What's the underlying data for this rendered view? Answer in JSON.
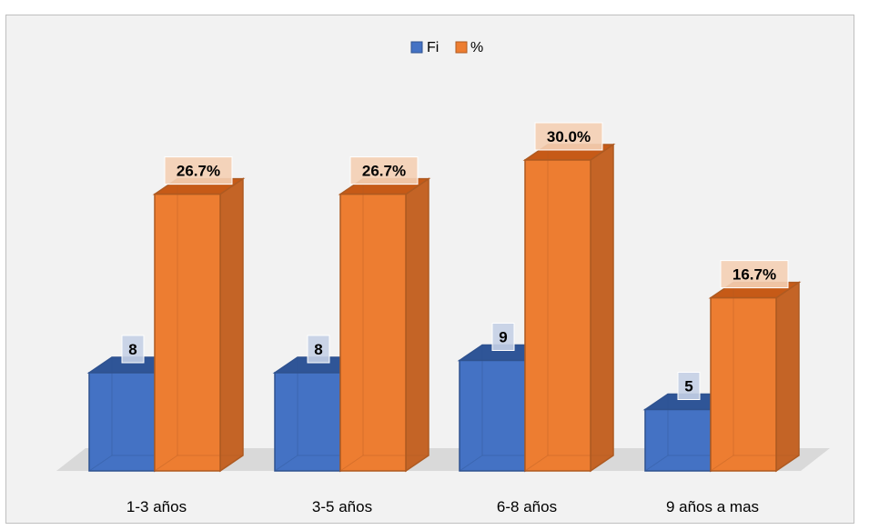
{
  "chart_data": {
    "type": "bar",
    "title": "",
    "xlabel": "",
    "ylabel": "",
    "categories": [
      "1-3 años",
      "3-5 años",
      "6-8 años",
      "9 años a mas"
    ],
    "series": [
      {
        "name": "Fi",
        "values": [
          8,
          8,
          9,
          5
        ],
        "labels": [
          "8",
          "8",
          "9",
          "5"
        ],
        "color": "#4472c4"
      },
      {
        "name": "%",
        "values": [
          26.7,
          26.7,
          30.0,
          16.7
        ],
        "labels": [
          "26.7%",
          "26.7%",
          "30.0%",
          "16.7%"
        ],
        "color": "#ed7d31"
      }
    ],
    "legend_position": "top-center",
    "grid": false,
    "style": "3d-clustered-column"
  }
}
